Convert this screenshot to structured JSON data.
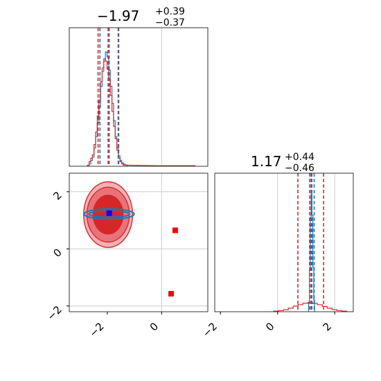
{
  "chart_data": {
    "type": "corner",
    "colors": {
      "red": "#d62728",
      "blue": "#1f77b4",
      "marker_red": "#ff0000",
      "marker_blue": "#0000ff",
      "grid": "#cccccc"
    },
    "panels": {
      "top_left": {
        "type": "histogram",
        "title": {
          "median": "−1.97",
          "plus": "+0.39",
          "minus": "−0.37"
        },
        "xlim": [
          -3.4,
          1.7
        ],
        "vlines_red": [
          -2.34,
          -1.97,
          -1.58
        ],
        "vlines_blue": [
          -2.27,
          -1.93,
          -1.6
        ],
        "grid_x": [
          0
        ],
        "blue_hist": [
          [
            -2.64,
            0.02
          ],
          [
            -2.58,
            0.05
          ],
          [
            -2.52,
            0.08
          ],
          [
            -2.46,
            0.16
          ],
          [
            -2.4,
            0.26
          ],
          [
            -2.34,
            0.38
          ],
          [
            -2.28,
            0.52
          ],
          [
            -2.22,
            0.7
          ],
          [
            -2.16,
            0.83
          ],
          [
            -2.1,
            0.92
          ],
          [
            -2.04,
            1.0
          ],
          [
            -1.98,
            0.96
          ],
          [
            -1.92,
            0.84
          ],
          [
            -1.86,
            0.7
          ],
          [
            -1.8,
            0.55
          ],
          [
            -1.74,
            0.4
          ],
          [
            -1.68,
            0.26
          ],
          [
            -1.62,
            0.16
          ],
          [
            -1.56,
            0.09
          ],
          [
            -1.5,
            0.05
          ],
          [
            -1.44,
            0.03
          ],
          [
            -1.38,
            0.02
          ],
          [
            -1.3,
            0.01
          ]
        ],
        "red_hist": [
          [
            -2.7,
            0.01
          ],
          [
            -2.64,
            0.04
          ],
          [
            -2.58,
            0.07
          ],
          [
            -2.52,
            0.1
          ],
          [
            -2.46,
            0.19
          ],
          [
            -2.4,
            0.3
          ],
          [
            -2.34,
            0.44
          ],
          [
            -2.28,
            0.58
          ],
          [
            -2.22,
            0.74
          ],
          [
            -2.16,
            0.86
          ],
          [
            -2.1,
            0.94
          ],
          [
            -2.04,
            0.92
          ],
          [
            -1.98,
            0.85
          ],
          [
            -1.92,
            0.76
          ],
          [
            -1.86,
            0.62
          ],
          [
            -1.8,
            0.48
          ],
          [
            -1.74,
            0.35
          ],
          [
            -1.68,
            0.24
          ],
          [
            -1.62,
            0.14
          ],
          [
            -1.56,
            0.07
          ],
          [
            -1.5,
            0.04
          ],
          [
            -1.44,
            0.02
          ],
          [
            -1.38,
            0.01
          ],
          [
            -0.1,
            0.005
          ],
          [
            0.2,
            0.005
          ],
          [
            0.5,
            0.005
          ],
          [
            0.8,
            0.005
          ],
          [
            1.2,
            0.005
          ]
        ]
      },
      "bottom_left": {
        "type": "contour",
        "xlim": [
          -3.4,
          1.7
        ],
        "ylim": [
          -2.2,
          2.65
        ],
        "xticks": [
          {
            "v": -2,
            "label": "−2"
          },
          {
            "v": 0,
            "label": "0"
          }
        ],
        "yticks": [
          {
            "v": -2,
            "label": "−2"
          },
          {
            "v": 0,
            "label": "0"
          },
          {
            "v": 2,
            "label": "2"
          }
        ],
        "grid_x": [
          0
        ],
        "grid_y": [
          2,
          0,
          -2
        ],
        "red_contours": [
          {
            "cx": -1.97,
            "cy": 1.2,
            "rx": 0.9,
            "ry": 1.15,
            "fill": "#f2b2b5"
          },
          {
            "cx": -1.97,
            "cy": 1.2,
            "rx": 0.78,
            "ry": 0.96,
            "fill": "#e8737a"
          },
          {
            "cx": -1.97,
            "cy": 1.2,
            "rx": 0.55,
            "ry": 0.68,
            "fill": "#d62728"
          }
        ],
        "blue_contours": [
          {
            "cx": -1.93,
            "cy": 1.22,
            "rx": 0.92,
            "ry": 0.18
          },
          {
            "cx": -1.93,
            "cy": 1.22,
            "rx": 0.75,
            "ry": 0.11
          }
        ],
        "blue_marker": {
          "x": -1.93,
          "y": 1.25
        },
        "red_markers": [
          {
            "x": 0.5,
            "y": 0.65
          },
          {
            "x": 0.35,
            "y": -1.57
          }
        ]
      },
      "bottom_right": {
        "type": "histogram",
        "title": {
          "median": "1.17",
          "plus": "+0.44",
          "minus": "−0.46"
        },
        "xlim": [
          -2.2,
          2.65
        ],
        "xticks": [
          {
            "v": -2,
            "label": "−2"
          },
          {
            "v": 0,
            "label": "0"
          },
          {
            "v": 2,
            "label": "2"
          }
        ],
        "grid_x": [
          0,
          2
        ],
        "vlines_red": [
          0.71,
          1.17,
          1.61
        ],
        "vlines_blue": [
          1.12,
          1.2,
          1.28
        ],
        "blue_hist": [
          [
            1.1,
            0.08
          ],
          [
            1.13,
            0.35
          ],
          [
            1.16,
            0.8
          ],
          [
            1.19,
            1.0
          ],
          [
            1.22,
            0.82
          ],
          [
            1.25,
            0.38
          ],
          [
            1.28,
            0.1
          ]
        ],
        "red_hist": [
          [
            -0.05,
            0.005
          ],
          [
            0.12,
            0.01
          ],
          [
            0.29,
            0.017
          ],
          [
            0.46,
            0.03
          ],
          [
            0.63,
            0.048
          ],
          [
            0.8,
            0.06
          ],
          [
            0.97,
            0.072
          ],
          [
            1.14,
            0.078
          ],
          [
            1.31,
            0.07
          ],
          [
            1.48,
            0.06
          ],
          [
            1.65,
            0.045
          ],
          [
            1.82,
            0.03
          ],
          [
            1.99,
            0.018
          ],
          [
            2.16,
            0.01
          ],
          [
            2.33,
            0.005
          ]
        ]
      }
    }
  }
}
